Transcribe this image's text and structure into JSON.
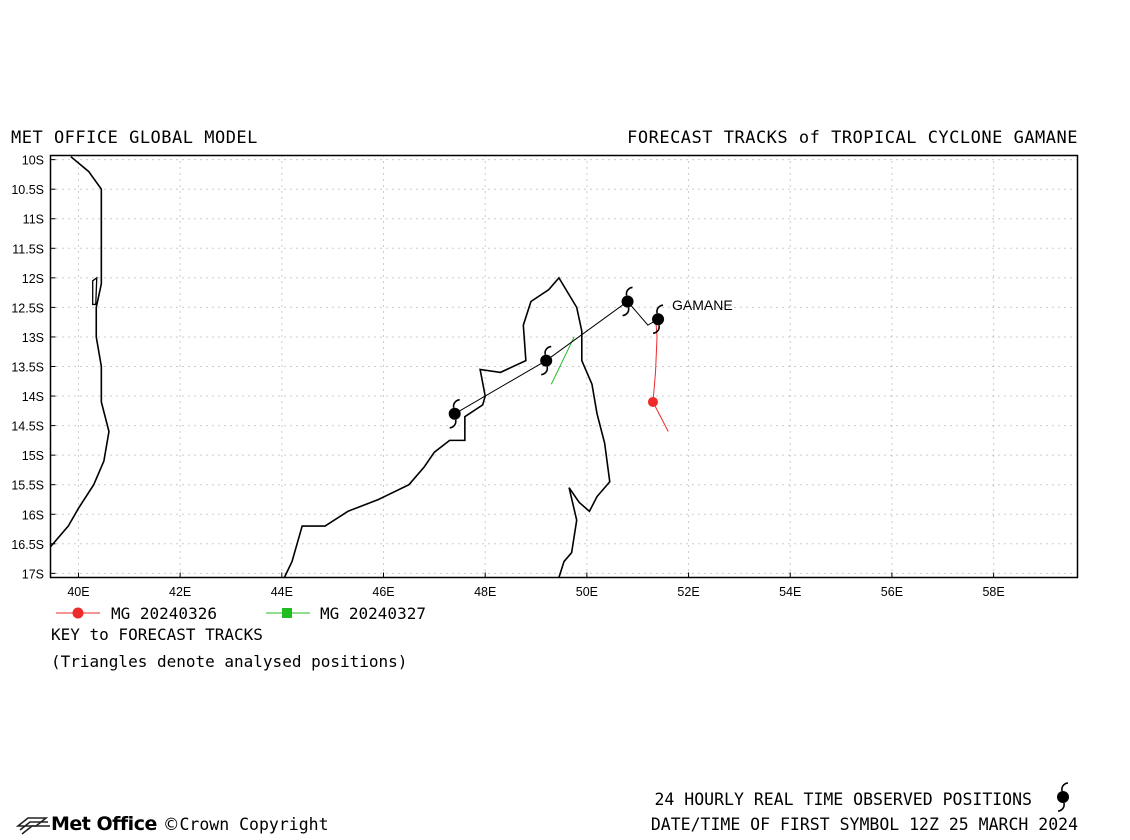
{
  "header": {
    "left": "MET OFFICE GLOBAL MODEL",
    "right": "FORECAST TRACKS of TROPICAL CYCLONE GAMANE"
  },
  "map": {
    "lon_range": [
      39.45,
      59.65
    ],
    "lat_range": [
      -17.07,
      -9.93
    ],
    "lon_ticks": [
      40,
      42,
      44,
      46,
      48,
      50,
      52,
      54,
      56,
      58
    ],
    "lon_tick_labels": [
      "40E",
      "42E",
      "44E",
      "46E",
      "48E",
      "50E",
      "52E",
      "54E",
      "56E",
      "58E"
    ],
    "lat_ticks": [
      -10,
      -10.5,
      -11,
      -11.5,
      -12,
      -12.5,
      -13,
      -13.5,
      -14,
      -14.5,
      -15,
      -15.5,
      -16,
      -16.5,
      -17
    ],
    "lat_tick_labels": [
      "10S",
      "10.5S",
      "11S",
      "11.5S",
      "12S",
      "12.5S",
      "13S",
      "13.5S",
      "14S",
      "14.5S",
      "15S",
      "15.5S",
      "16S",
      "16.5S",
      "17S"
    ],
    "grid": true,
    "storm_label": "GAMANE"
  },
  "observed_track": {
    "color": "#000000",
    "points": [
      [
        51.4,
        -12.7
      ],
      [
        51.2,
        -12.8
      ],
      [
        50.8,
        -12.4
      ],
      [
        49.2,
        -13.4
      ],
      [
        47.4,
        -14.3
      ]
    ],
    "symbol_points": [
      [
        51.4,
        -12.7
      ],
      [
        50.8,
        -12.4
      ],
      [
        49.2,
        -13.4
      ],
      [
        47.4,
        -14.3
      ]
    ]
  },
  "forecast_tracks": [
    {
      "name": "MG 20240326",
      "color": "#ee2a2a",
      "marker": "circle",
      "points": [
        [
          51.35,
          -12.65
        ],
        [
          51.38,
          -13.0
        ],
        [
          51.35,
          -13.6
        ],
        [
          51.3,
          -14.1
        ],
        [
          51.6,
          -14.6
        ]
      ],
      "marker_points": [
        [
          51.3,
          -14.1
        ]
      ]
    },
    {
      "name": "MG 20240327",
      "color": "#22bb22",
      "marker": "square",
      "points": [
        [
          49.75,
          -13.0
        ],
        [
          49.3,
          -13.8
        ]
      ],
      "marker_points": []
    }
  ],
  "coastlines": [
    [
      [
        39.85,
        -9.95
      ],
      [
        40.2,
        -10.2
      ],
      [
        40.45,
        -10.5
      ],
      [
        40.45,
        -11.0
      ],
      [
        40.45,
        -11.7
      ],
      [
        40.45,
        -12.1
      ],
      [
        40.35,
        -12.5
      ],
      [
        40.35,
        -13.0
      ],
      [
        40.45,
        -13.5
      ],
      [
        40.45,
        -14.1
      ],
      [
        40.6,
        -14.6
      ],
      [
        40.5,
        -15.1
      ],
      [
        40.3,
        -15.5
      ],
      [
        40.0,
        -15.9
      ],
      [
        39.8,
        -16.2
      ],
      [
        39.45,
        -16.55
      ]
    ],
    [
      [
        44.05,
        -17.07
      ],
      [
        44.2,
        -16.8
      ],
      [
        44.4,
        -16.2
      ],
      [
        44.85,
        -16.2
      ],
      [
        45.3,
        -15.95
      ],
      [
        45.9,
        -15.75
      ],
      [
        46.5,
        -15.5
      ],
      [
        46.8,
        -15.2
      ],
      [
        47.0,
        -14.95
      ],
      [
        47.3,
        -14.75
      ],
      [
        47.6,
        -14.75
      ],
      [
        47.6,
        -14.35
      ],
      [
        47.95,
        -14.15
      ],
      [
        48.0,
        -14.0
      ],
      [
        47.9,
        -13.55
      ],
      [
        48.3,
        -13.6
      ],
      [
        48.8,
        -13.4
      ],
      [
        48.75,
        -12.8
      ],
      [
        48.9,
        -12.4
      ],
      [
        49.25,
        -12.2
      ],
      [
        49.45,
        -12.0
      ],
      [
        49.8,
        -12.5
      ],
      [
        49.9,
        -12.9
      ],
      [
        49.9,
        -13.4
      ],
      [
        50.1,
        -13.8
      ],
      [
        50.2,
        -14.3
      ],
      [
        50.35,
        -14.8
      ],
      [
        50.45,
        -15.45
      ],
      [
        50.2,
        -15.7
      ],
      [
        50.05,
        -15.95
      ],
      [
        49.85,
        -15.8
      ],
      [
        49.65,
        -15.55
      ],
      [
        49.8,
        -16.1
      ],
      [
        49.7,
        -16.65
      ],
      [
        49.55,
        -16.8
      ],
      [
        49.45,
        -17.07
      ]
    ]
  ],
  "islet": [
    [
      40.28,
      -12.05
    ],
    [
      40.36,
      -12.0
    ],
    [
      40.34,
      -12.45
    ],
    [
      40.28,
      -12.45
    ]
  ],
  "legend": {
    "title": "KEY to FORECAST TRACKS",
    "note": "(Triangles denote analysed positions)"
  },
  "footer": {
    "logo": "Met Office",
    "copyright": "Crown Copyright",
    "line1": "24 HOURLY REAL TIME OBSERVED POSITIONS",
    "line2": "DATE/TIME OF FIRST SYMBOL 12Z 25 MARCH 2024"
  }
}
